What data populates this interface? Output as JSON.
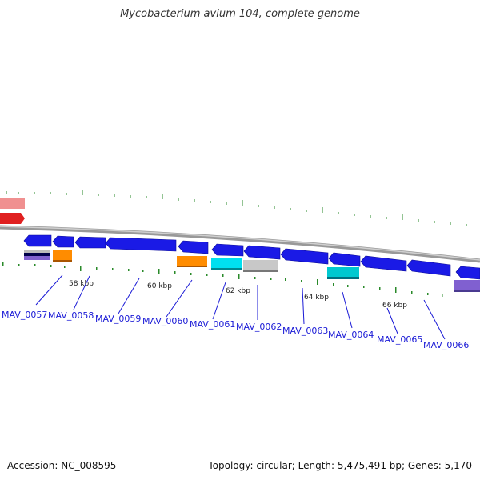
{
  "title": "Mycobacterium avium 104, complete genome",
  "scale_labels": [
    "58 kbp",
    "60 kbp",
    "62 kbp",
    "64 kbp",
    "66 kbp"
  ],
  "gene_labels": [
    "MAV_0057",
    "MAV_0058",
    "MAV_0059",
    "MAV_0060",
    "MAV_0061",
    "MAV_0062",
    "MAV_0063",
    "MAV_0064",
    "MAV_0065",
    "MAV_0066"
  ],
  "footer": {
    "accession": "Accession: NC_008595",
    "stats": "Topology: circular; Length: 5,475,491 bp; Genes: 5,170"
  },
  "colors": {
    "gene_arrow": "#1a1ae6",
    "label_text": "#1a1ad6",
    "tick": "#2a8a2a",
    "backbone": "#999999"
  }
}
